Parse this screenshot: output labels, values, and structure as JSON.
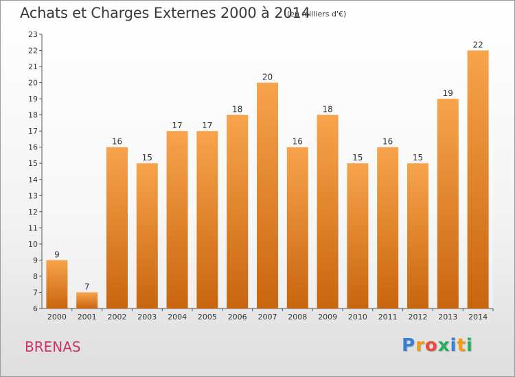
{
  "chart_data": {
    "type": "bar",
    "title": "Achats et Charges Externes 2000 à 2014",
    "subtitle": "(en milliers d'€)",
    "categories": [
      "2000",
      "2001",
      "2002",
      "2003",
      "2004",
      "2005",
      "2006",
      "2007",
      "2008",
      "2009",
      "2010",
      "2011",
      "2012",
      "2013",
      "2014"
    ],
    "values": [
      9,
      7,
      16,
      15,
      17,
      17,
      18,
      20,
      16,
      18,
      15,
      16,
      15,
      19,
      22
    ],
    "data_labels": [
      "9",
      "7",
      "16",
      "15",
      "17",
      "17",
      "18",
      "20",
      "16",
      "18",
      "15",
      "16",
      "15",
      "19",
      "22"
    ],
    "ylim": [
      6,
      23
    ],
    "y_ticks": [
      "6",
      "7",
      "8",
      "9",
      "10",
      "11",
      "12",
      "13",
      "14",
      "15",
      "16",
      "17",
      "18",
      "19",
      "20",
      "21",
      "22",
      "23"
    ],
    "grid": false,
    "bar_color": "#f07f1e"
  },
  "footer": {
    "place": "BRENAS",
    "logo_letters": [
      "P",
      "r",
      "o",
      "x",
      "i",
      "t",
      "i"
    ],
    "logo_colors": [
      "#3a7fd5",
      "#f39c12",
      "#e74c3c",
      "#27ae60",
      "#3a7fd5",
      "#f39c12",
      "#27ae60"
    ]
  }
}
